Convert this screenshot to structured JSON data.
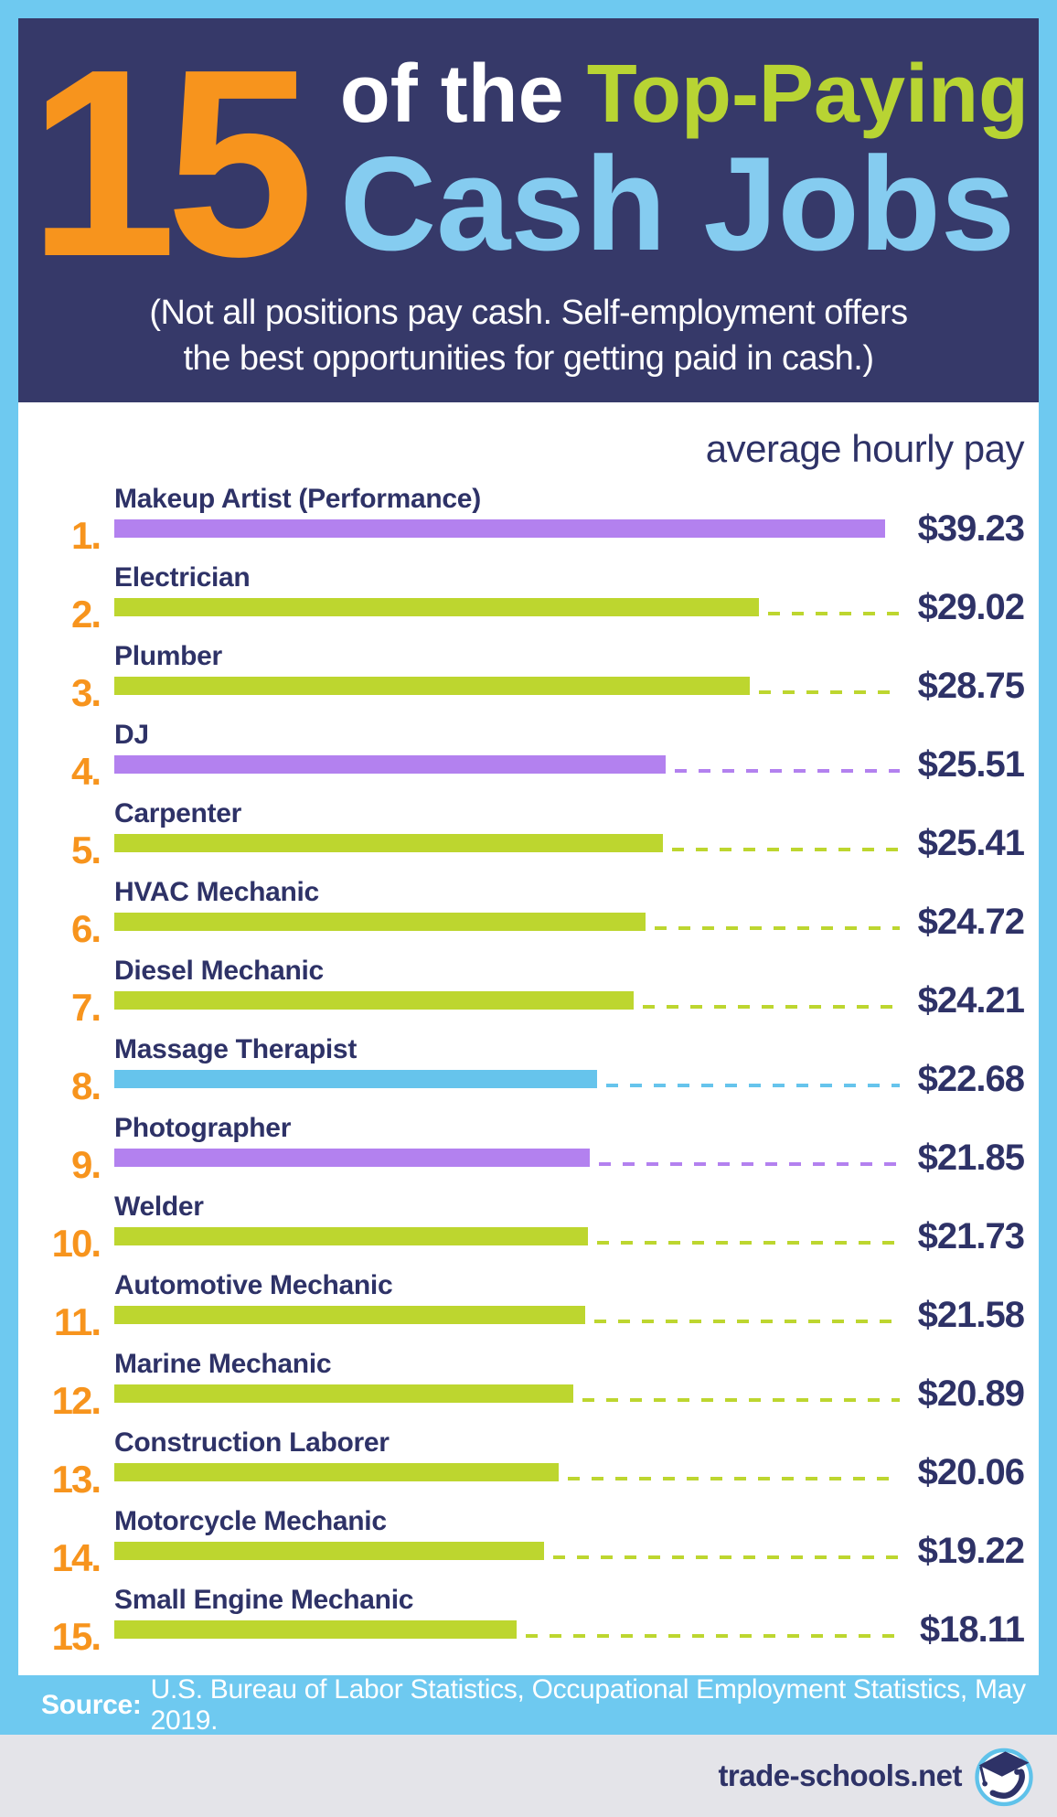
{
  "page": {
    "colors": {
      "background": "#6ec9f0",
      "header_bg": "#363969",
      "panel_bg": "#ffffff",
      "navy": "#2e3267",
      "orange": "#f7941d",
      "green": "#bdd62f",
      "purple": "#b381ef",
      "blue": "#66c4ec",
      "title_green": "#b8d433",
      "title_blue": "#85ccf0",
      "white": "#ffffff",
      "footer_gray": "#e4e4e9"
    },
    "header": {
      "big_number": "15",
      "line1_white": "of the ",
      "line1_green": "Top-Paying",
      "line2": "Cash Jobs",
      "subtitle_line1": "(Not all positions pay cash. Self-employment offers",
      "subtitle_line2": "the best opportunities for getting paid in cash.)"
    },
    "source": {
      "label": "Source:",
      "text": "U.S. Bureau of Labor Statistics, Occupational Employment Statistics, May 2019."
    },
    "footer": {
      "site": "trade-schools.net",
      "logo": "trade-schools-logo"
    }
  },
  "chart_data": {
    "type": "bar",
    "orientation": "horizontal",
    "title": "15 of the Top-Paying Cash Jobs",
    "value_heading": "average hourly pay",
    "unit": "USD per hour",
    "xlim": [
      0,
      40
    ],
    "grid": false,
    "legend": "none",
    "categories": [
      "Makeup Artist (Performance)",
      "Electrician",
      "Plumber",
      "DJ",
      "Carpenter",
      "HVAC Mechanic",
      "Diesel Mechanic",
      "Massage Therapist",
      "Photographer",
      "Welder",
      "Automotive Mechanic",
      "Marine Mechanic",
      "Construction Laborer",
      "Motorcycle Mechanic",
      "Small Engine Mechanic"
    ],
    "values": [
      39.23,
      29.02,
      28.75,
      25.51,
      25.41,
      24.72,
      24.21,
      22.68,
      21.85,
      21.73,
      21.58,
      20.89,
      20.06,
      19.22,
      18.11
    ],
    "rows": [
      {
        "rank": "1.",
        "job": "Makeup Artist (Performance)",
        "value": 39.23,
        "label": "$39.23",
        "color": "purple",
        "bar_pct": 97.5,
        "dashed": false
      },
      {
        "rank": "2.",
        "job": "Electrician",
        "value": 29.02,
        "label": "$29.02",
        "color": "green",
        "bar_pct": 81.5,
        "dashed": true
      },
      {
        "rank": "3.",
        "job": "Plumber",
        "value": 28.75,
        "label": "$28.75",
        "color": "green",
        "bar_pct": 80.3,
        "dashed": true
      },
      {
        "rank": "4.",
        "job": "DJ",
        "value": 25.51,
        "label": "$25.51",
        "color": "purple",
        "bar_pct": 69.7,
        "dashed": true
      },
      {
        "rank": "5.",
        "job": "Carpenter",
        "value": 25.41,
        "label": "$25.41",
        "color": "green",
        "bar_pct": 69.4,
        "dashed": true
      },
      {
        "rank": "6.",
        "job": "HVAC Mechanic",
        "value": 24.72,
        "label": "$24.72",
        "color": "green",
        "bar_pct": 67.2,
        "dashed": true
      },
      {
        "rank": "7.",
        "job": "Diesel Mechanic",
        "value": 24.21,
        "label": "$24.21",
        "color": "green",
        "bar_pct": 65.7,
        "dashed": true
      },
      {
        "rank": "8.",
        "job": "Massage Therapist",
        "value": 22.68,
        "label": "$22.68",
        "color": "blue",
        "bar_pct": 61.0,
        "dashed": true
      },
      {
        "rank": "9.",
        "job": "Photographer",
        "value": 21.85,
        "label": "$21.85",
        "color": "purple",
        "bar_pct": 60.1,
        "dashed": true
      },
      {
        "rank": "10.",
        "job": "Welder",
        "value": 21.73,
        "label": "$21.73",
        "color": "green",
        "bar_pct": 59.9,
        "dashed": true
      },
      {
        "rank": "11.",
        "job": "Automotive Mechanic",
        "value": 21.58,
        "label": "$21.58",
        "color": "green",
        "bar_pct": 59.5,
        "dashed": true
      },
      {
        "rank": "12.",
        "job": "Marine Mechanic",
        "value": 20.89,
        "label": "$20.89",
        "color": "green",
        "bar_pct": 58.0,
        "dashed": true
      },
      {
        "rank": "13.",
        "job": "Construction Laborer",
        "value": 20.06,
        "label": "$20.06",
        "color": "green",
        "bar_pct": 56.2,
        "dashed": true
      },
      {
        "rank": "14.",
        "job": "Motorcycle Mechanic",
        "value": 19.22,
        "label": "$19.22",
        "color": "green",
        "bar_pct": 54.3,
        "dashed": true
      },
      {
        "rank": "15.",
        "job": "Small Engine Mechanic",
        "value": 18.11,
        "label": "$18.11",
        "color": "green",
        "bar_pct": 50.9,
        "dashed": true
      }
    ]
  }
}
